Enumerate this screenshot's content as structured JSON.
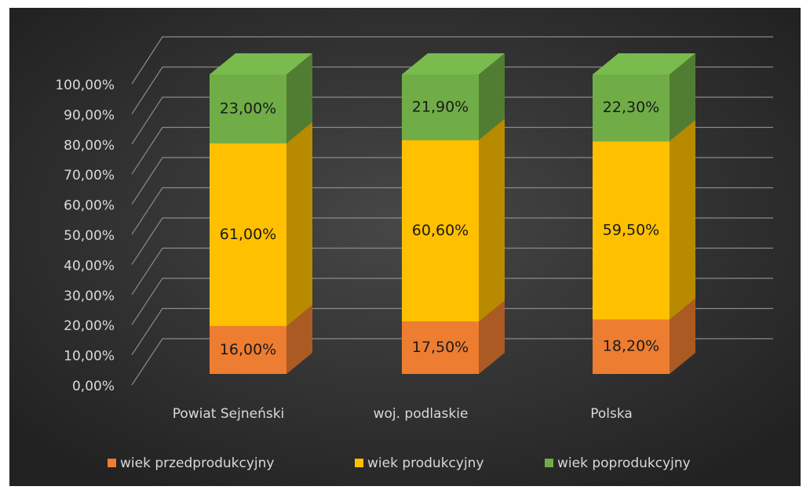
{
  "chart_data": {
    "type": "bar",
    "stacked": true,
    "categories": [
      "Powiat Sejneński",
      "woj. podlaskie",
      "Polska"
    ],
    "series": [
      {
        "name": "wiek przedprodukcyjny",
        "color": "#ed7d31",
        "values": [
          16,
          17.5,
          18.2
        ],
        "value_labels": [
          "16,00%",
          "17,50%",
          "18,20%"
        ]
      },
      {
        "name": "wiek produkcyjny",
        "color": "#ffc000",
        "values": [
          61,
          60.6,
          59.5
        ],
        "value_labels": [
          "61,00%",
          "60,60%",
          "59,50%"
        ]
      },
      {
        "name": "wiek poprodukcyjny",
        "color": "#70ad47",
        "values": [
          23,
          21.9,
          22.3
        ],
        "value_labels": [
          "23,00%",
          "21,90%",
          "22,30%"
        ]
      }
    ],
    "ylim": [
      0,
      100
    ],
    "yticks": [
      {
        "value": 0,
        "label": "0,00%"
      },
      {
        "value": 10,
        "label": "10,00%"
      },
      {
        "value": 20,
        "label": "20,00%"
      },
      {
        "value": 30,
        "label": "30,00%"
      },
      {
        "value": 40,
        "label": "40,00%"
      },
      {
        "value": 50,
        "label": "50,00%"
      },
      {
        "value": 60,
        "label": "60,00%"
      },
      {
        "value": 70,
        "label": "70,00%"
      },
      {
        "value": 80,
        "label": "80,00%"
      },
      {
        "value": 90,
        "label": "90,00%"
      },
      {
        "value": 100,
        "label": "100,00%"
      }
    ],
    "grid": true,
    "legend": "bottom"
  }
}
